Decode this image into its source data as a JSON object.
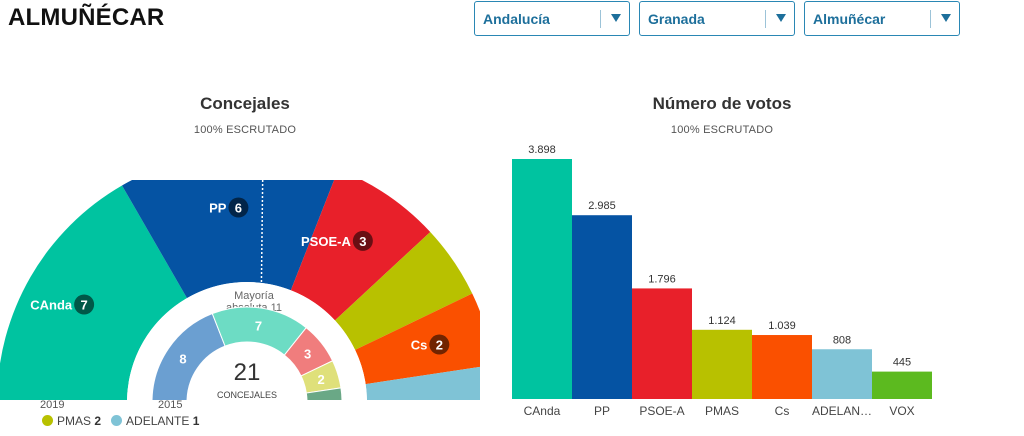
{
  "header": {
    "title": "ALMUÑÉCAR",
    "filters": [
      {
        "value": "Andalucía"
      },
      {
        "value": "Granada"
      },
      {
        "value": "Almuñécar"
      }
    ]
  },
  "seats": {
    "title": "Concejales",
    "subtitle": "100% ESCRUTADO",
    "majority_line1": "Mayoría",
    "majority_line2": "absoluta 11",
    "total": "21",
    "total_label": "CONCEJALES",
    "year_outer": "2019",
    "year_inner": "2015",
    "outer": [
      {
        "party": "CAnda",
        "seats": 7,
        "color": "#00c3a0",
        "label": true
      },
      {
        "party": "PP",
        "seats": 6,
        "color": "#0553a3",
        "label": true
      },
      {
        "party": "PSOE-A",
        "seats": 3,
        "color": "#e8202a",
        "label": true
      },
      {
        "party": "PMAS",
        "seats": 2,
        "color": "#b8c100",
        "label": false
      },
      {
        "party": "Cs",
        "seats": 2,
        "color": "#fa5000",
        "label": true
      },
      {
        "party": "ADELANTE",
        "seats": 1,
        "color": "#7fc3d6",
        "label": false
      }
    ],
    "inner": [
      {
        "seats": 8,
        "color": "#6b9fd1",
        "label": "8"
      },
      {
        "seats": 7,
        "color": "#6ddcc4",
        "label": "7"
      },
      {
        "seats": 3,
        "color": "#f07d7d",
        "label": "3"
      },
      {
        "seats": 2,
        "color": "#dfe07a",
        "label": "2"
      },
      {
        "seats": 1,
        "color": "#6aa886",
        "label": ""
      }
    ],
    "legend": [
      {
        "party": "PMAS",
        "seats": "2",
        "color": "#b8c100"
      },
      {
        "party": "ADELANTE",
        "seats": "1",
        "color": "#7fc3d6"
      }
    ]
  },
  "chart_data": {
    "type": "bar",
    "title": "Número de votos",
    "subtitle": "100% ESCRUTADO",
    "categories": [
      "CAnda",
      "PP",
      "PSOE-A",
      "PMAS",
      "Cs",
      "ADELAN…",
      "VOX"
    ],
    "values": [
      3898,
      2985,
      1796,
      1124,
      1039,
      808,
      445
    ],
    "value_labels": [
      "3.898",
      "2.985",
      "1.796",
      "1.124",
      "1.039",
      "808",
      "445"
    ],
    "colors": [
      "#00c3a0",
      "#0553a3",
      "#e8202a",
      "#b8c100",
      "#fa5000",
      "#7fc3d6",
      "#5cba1f"
    ],
    "ylim": [
      0,
      3898
    ]
  }
}
